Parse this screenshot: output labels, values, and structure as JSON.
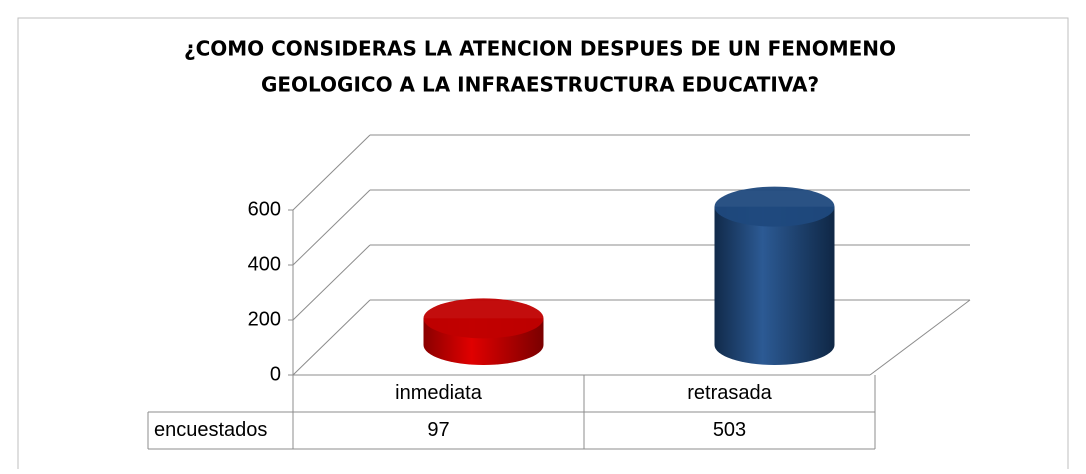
{
  "chart_data": {
    "type": "cylinder3d",
    "title": "¿COMO CONSIDERAS LA ATENCION   DESPUES DE UN  FENOMENO",
    "subtitle": "GEOLOGICO A LA INFRAESTRUCTURA EDUCATIVA?",
    "categories": [
      "inmediata",
      "retrasada"
    ],
    "series": [
      {
        "name": "encuestados",
        "colors": [
          "#c00000",
          "#1f497d"
        ],
        "values": [
          97,
          503
        ]
      }
    ],
    "ylim": [
      0,
      600
    ],
    "yticks": [
      0,
      200,
      400,
      600
    ],
    "grid": true,
    "data_table": true
  }
}
